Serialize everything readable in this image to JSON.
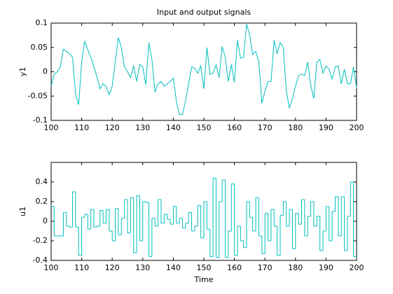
{
  "chart_data": [
    {
      "type": "line",
      "title": "Input and output signals",
      "y_label": "y1",
      "color": "#00bfbf",
      "x": [
        100,
        101,
        102,
        103,
        104,
        105,
        106,
        107,
        108,
        109,
        110,
        111,
        112,
        113,
        114,
        115,
        116,
        117,
        118,
        119,
        120,
        121,
        122,
        123,
        124,
        125,
        126,
        127,
        128,
        129,
        130,
        131,
        132,
        133,
        134,
        135,
        136,
        137,
        138,
        139,
        140,
        141,
        142,
        143,
        144,
        145,
        146,
        147,
        148,
        149,
        150,
        151,
        152,
        153,
        154,
        155,
        156,
        157,
        158,
        159,
        160,
        161,
        162,
        163,
        164,
        165,
        166,
        167,
        168,
        169,
        170,
        171,
        172,
        173,
        174,
        175,
        176,
        177,
        178,
        179,
        180,
        181,
        182,
        183,
        184,
        185,
        186,
        187,
        188,
        189,
        190,
        191,
        192,
        193,
        194,
        195,
        196,
        197,
        198,
        199,
        200
      ],
      "values": [
        -0.03,
        -0.005,
        0,
        0.01,
        0.046,
        0.042,
        0.037,
        0.03,
        -0.045,
        -0.068,
        0.02,
        0.063,
        0.045,
        0.03,
        0.01,
        -0.01,
        -0.035,
        -0.025,
        -0.03,
        -0.047,
        -0.03,
        0.02,
        0.07,
        0.05,
        0.01,
        0,
        -0.012,
        0.013,
        -0.02,
        0.015,
        0.01,
        -0.027,
        0.06,
        0.025,
        -0.042,
        -0.025,
        -0.02,
        -0.03,
        -0.025,
        -0.02,
        -0.013,
        -0.06,
        -0.088,
        -0.088,
        -0.06,
        -0.025,
        0.01,
        0.007,
        -0.003,
        0.012,
        -0.035,
        0.05,
        -0.005,
        -0.003,
        0.014,
        -0.012,
        0.052,
        0.03,
        -0.02,
        0.015,
        -0.022,
        0.065,
        0.028,
        0.03,
        0.098,
        0.075,
        0.035,
        0.042,
        0.02,
        -0.065,
        -0.04,
        -0.02,
        -0.02,
        0.065,
        0.038,
        0.06,
        0.05,
        -0.04,
        -0.075,
        -0.055,
        -0.03,
        -0.008,
        -0.005,
        -0.008,
        0.02,
        -0.028,
        -0.055,
        0.02,
        0.025,
        -0.003,
        0.012,
        0.005,
        -0.015,
        0.01,
        0.012,
        -0.025,
        0.005,
        -0.025,
        -0.025,
        0.01,
        -0.033
      ],
      "xlim": [
        100,
        200
      ],
      "xticks": [
        100,
        110,
        120,
        130,
        140,
        150,
        160,
        170,
        180,
        190,
        200
      ],
      "ylim": [
        -0.1,
        0.1
      ],
      "yticks": [
        -0.1,
        -0.05,
        0,
        0.05,
        0.1
      ]
    },
    {
      "type": "stairs",
      "x_label": "Time",
      "y_label": "u1",
      "color": "#00bfbf",
      "x": [
        100,
        101,
        102,
        103,
        104,
        105,
        106,
        107,
        108,
        109,
        110,
        111,
        112,
        113,
        114,
        115,
        116,
        117,
        118,
        119,
        120,
        121,
        122,
        123,
        124,
        125,
        126,
        127,
        128,
        129,
        130,
        131,
        132,
        133,
        134,
        135,
        136,
        137,
        138,
        139,
        140,
        141,
        142,
        143,
        144,
        145,
        146,
        147,
        148,
        149,
        150,
        151,
        152,
        153,
        154,
        155,
        156,
        157,
        158,
        159,
        160,
        161,
        162,
        163,
        164,
        165,
        166,
        167,
        168,
        169,
        170,
        171,
        172,
        173,
        174,
        175,
        176,
        177,
        178,
        179,
        180,
        181,
        182,
        183,
        184,
        185,
        186,
        187,
        188,
        189,
        190,
        191,
        192,
        193,
        194,
        195,
        196,
        197,
        198,
        199,
        200
      ],
      "values": [
        0.15,
        -0.15,
        -0.15,
        -0.15,
        0.09,
        -0.05,
        -0.06,
        0.3,
        -0.06,
        -0.35,
        0.04,
        0.07,
        -0.08,
        0.12,
        -0.06,
        -0.05,
        0.11,
        -0.02,
        0.12,
        -0.1,
        -0.2,
        0.13,
        -0.14,
        0.03,
        0.22,
        -0.12,
        0.24,
        -0.32,
        0.26,
        -0.2,
        0.2,
        0.19,
        -0.36,
        0.03,
        -0.05,
        0.22,
        -0.02,
        0.07,
        0.02,
        -0.03,
        0.15,
        -0.02,
        0.03,
        -0.07,
        -0.02,
        0.09,
        -0.1,
        -0.05,
        0.16,
        -0.17,
        0.2,
        -0.08,
        -0.36,
        0.44,
        -0.37,
        0.2,
        0.42,
        -0.37,
        -0.1,
        0.38,
        -0.35,
        -0.05,
        -0.2,
        -0.27,
        0.2,
        0.04,
        -0.1,
        0.24,
        -0.15,
        -0.33,
        0.08,
        -0.2,
        0.12,
        -0.05,
        -0.35,
        0.06,
        0.2,
        -0.05,
        0.12,
        -0.28,
        0.08,
        -0.03,
        0.22,
        -0.15,
        0.05,
        0.2,
        -0.05,
        0.05,
        -0.3,
        -0.1,
        0.15,
        -0.2,
        0.1,
        0.25,
        -0.15,
        0.25,
        -0.3,
        0.05,
        0.4,
        -0.36,
        -0.36
      ],
      "xlim": [
        100,
        200
      ],
      "xticks": [
        100,
        110,
        120,
        130,
        140,
        150,
        160,
        170,
        180,
        190,
        200
      ],
      "ylim": [
        -0.4,
        0.6
      ],
      "yticks": [
        -0.4,
        -0.2,
        0,
        0.2,
        0.4
      ]
    }
  ]
}
